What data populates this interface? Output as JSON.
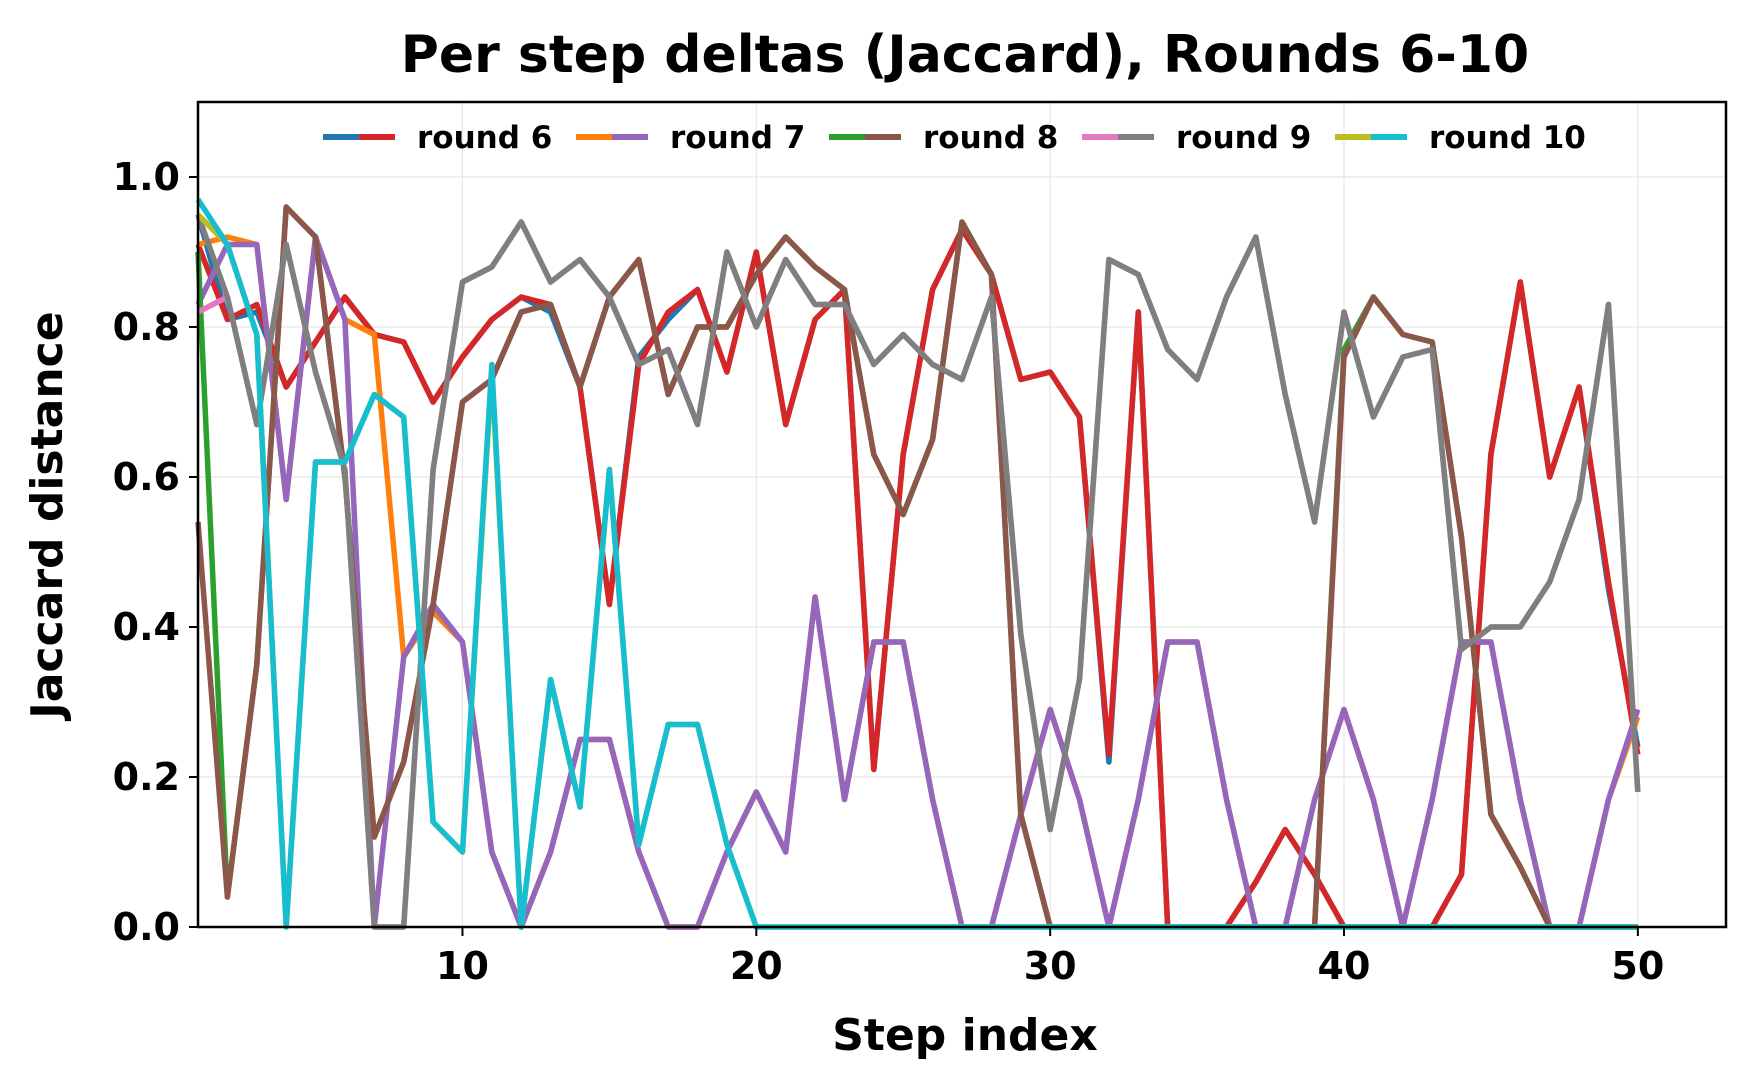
{
  "chart_data": {
    "type": "line",
    "title": "Per step deltas (Jaccard), Rounds 6-10",
    "xlabel": "Step index",
    "ylabel": "Jaccard distance",
    "xlim": [
      1,
      53
    ],
    "ylim": [
      0,
      1.1
    ],
    "xticks": [
      10,
      20,
      30,
      40,
      50
    ],
    "yticks": [
      0.0,
      0.2,
      0.4,
      0.6,
      0.8,
      1.0
    ],
    "grid": true,
    "legend_position": "top-center",
    "legend": [
      {
        "label": "round 6",
        "colors": [
          "#1f77b4",
          "#d62728"
        ]
      },
      {
        "label": "round 7",
        "colors": [
          "#ff7f0e",
          "#9467bd"
        ]
      },
      {
        "label": "round 8",
        "colors": [
          "#2ca02c",
          "#8c564b"
        ]
      },
      {
        "label": "round 9",
        "colors": [
          "#e377c2",
          "#7f7f7f"
        ]
      },
      {
        "label": "round 10",
        "colors": [
          "#bcbd22",
          "#17becf"
        ]
      }
    ],
    "x": [
      1,
      2,
      3,
      4,
      5,
      6,
      7,
      8,
      9,
      10,
      11,
      12,
      13,
      14,
      15,
      16,
      17,
      18,
      19,
      20,
      21,
      22,
      23,
      24,
      25,
      26,
      27,
      28,
      29,
      30,
      31,
      32,
      33,
      34,
      35,
      36,
      37,
      38,
      39,
      40,
      41,
      42,
      43,
      44,
      45,
      46,
      47,
      48,
      49,
      50
    ],
    "series": [
      {
        "color": "#1f77b4",
        "values": [
          0.95,
          0.81,
          0.82,
          0.72,
          0.78,
          0.84,
          0.79,
          0.78,
          0.7,
          0.76,
          0.81,
          0.84,
          0.82,
          0.72,
          0.43,
          0.76,
          0.81,
          0.85,
          0.74,
          0.9,
          0.67,
          0.81,
          0.85,
          0.21,
          0.63,
          0.85,
          0.93,
          0.87,
          0.73,
          0.74,
          0.68,
          0.22,
          0.82,
          0,
          0,
          0,
          0.06,
          0.13,
          0.07,
          0,
          0,
          0,
          0,
          0.07,
          0.63,
          0.86,
          0.6,
          0.72,
          0.45,
          0.24
        ]
      },
      {
        "color": "#d62728",
        "values": [
          0.91,
          0.81,
          0.83,
          0.72,
          0.78,
          0.84,
          0.79,
          0.78,
          0.7,
          0.76,
          0.81,
          0.84,
          0.83,
          0.72,
          0.43,
          0.75,
          0.82,
          0.85,
          0.74,
          0.9,
          0.67,
          0.81,
          0.85,
          0.21,
          0.63,
          0.85,
          0.93,
          0.87,
          0.73,
          0.74,
          0.68,
          0.23,
          0.82,
          0,
          0,
          0,
          0.06,
          0.13,
          0.07,
          0,
          0,
          0,
          0,
          0.07,
          0.63,
          0.86,
          0.6,
          0.72,
          0.46,
          0.23
        ]
      },
      {
        "color": "#ff7f0e",
        "values": [
          0.91,
          0.92,
          0.91,
          0.57,
          0.92,
          0.81,
          0.79,
          0.36,
          0.42,
          0.38,
          0.1,
          0,
          0.1,
          0.25,
          0.25,
          0.1,
          0,
          0,
          0.1,
          0.18,
          0.1,
          0.44,
          0.17,
          0.38,
          0.38,
          0.17,
          0,
          0,
          0.15,
          0.29,
          0.17,
          0,
          0.17,
          0.38,
          0.38,
          0.17,
          0,
          0,
          0.17,
          0.29,
          0.17,
          0,
          0.17,
          0.38,
          0.38,
          0.17,
          0,
          0,
          0.17,
          0.28
        ]
      },
      {
        "color": "#9467bd",
        "values": [
          0.83,
          0.91,
          0.91,
          0.57,
          0.92,
          0.81,
          0,
          0.36,
          0.43,
          0.38,
          0.1,
          0,
          0.1,
          0.25,
          0.25,
          0.1,
          0,
          0,
          0.1,
          0.18,
          0.1,
          0.44,
          0.17,
          0.38,
          0.38,
          0.17,
          0,
          0,
          0.15,
          0.29,
          0.17,
          0,
          0.17,
          0.38,
          0.38,
          0.17,
          0,
          0,
          0.17,
          0.29,
          0.17,
          0,
          0.17,
          0.38,
          0.38,
          0.17,
          0,
          0,
          0.17,
          0.29
        ]
      },
      {
        "color": "#2ca02c",
        "values": [
          0.9,
          0.04,
          0.35,
          0.96,
          0.92,
          0.6,
          0.12,
          0.22,
          0.43,
          0.7,
          0.73,
          0.82,
          0.83,
          0.72,
          0.84,
          0.89,
          0.71,
          0.8,
          0.8,
          0.87,
          0.92,
          0.88,
          0.85,
          0.63,
          0.55,
          0.65,
          0.94,
          0.87,
          0.15,
          0,
          0,
          0,
          0,
          0,
          0,
          0,
          0,
          0,
          0,
          0.77,
          0.84,
          0.79,
          0.78,
          0.52,
          0.15,
          0.08,
          0,
          0,
          0,
          0
        ]
      },
      {
        "color": "#8c564b",
        "values": [
          0.54,
          0.04,
          0.35,
          0.96,
          0.92,
          0.6,
          0.12,
          0.22,
          0.43,
          0.7,
          0.73,
          0.82,
          0.83,
          0.72,
          0.84,
          0.89,
          0.71,
          0.8,
          0.8,
          0.87,
          0.92,
          0.88,
          0.85,
          0.63,
          0.55,
          0.65,
          0.94,
          0.87,
          0.15,
          0,
          0,
          0,
          0,
          0,
          0,
          0,
          0,
          0,
          0,
          0.76,
          0.84,
          0.79,
          0.78,
          0.52,
          0.15,
          0.08,
          0,
          0,
          0,
          0
        ]
      },
      {
        "color": "#e377c2",
        "values": [
          0.82,
          0.84,
          0.67,
          0.91,
          0.74,
          0.61,
          0,
          0,
          0.61,
          0.86,
          0.88,
          0.94,
          0.86,
          0.89,
          0.84,
          0.75,
          0.77,
          0.67,
          0.9,
          0.8,
          0.89,
          0.83,
          0.83,
          0.75,
          0.79,
          0.75,
          0.73,
          0.84,
          0.39,
          0.13,
          0.33,
          0.89,
          0.87,
          0.77,
          0.73,
          0.84,
          0.92,
          0.71,
          0.54,
          0.82,
          0.68,
          0.76,
          0.77,
          0.37,
          0.4,
          0.4,
          0.46,
          0.57,
          0.83,
          0.18
        ]
      },
      {
        "color": "#7f7f7f",
        "values": [
          0.95,
          0.84,
          0.67,
          0.91,
          0.74,
          0.61,
          0,
          0,
          0.61,
          0.86,
          0.88,
          0.94,
          0.86,
          0.89,
          0.84,
          0.75,
          0.77,
          0.67,
          0.9,
          0.8,
          0.89,
          0.83,
          0.83,
          0.75,
          0.79,
          0.75,
          0.73,
          0.84,
          0.39,
          0.13,
          0.33,
          0.89,
          0.87,
          0.77,
          0.73,
          0.84,
          0.92,
          0.71,
          0.54,
          0.82,
          0.68,
          0.76,
          0.77,
          0.37,
          0.4,
          0.4,
          0.46,
          0.57,
          0.83,
          0.18
        ]
      },
      {
        "color": "#bcbd22",
        "values": [
          0.95,
          0.91,
          0.79,
          0,
          0.62,
          0.62,
          0.71,
          0.68,
          0.14,
          0.1,
          0.74,
          0,
          0.33,
          0.16,
          0.61,
          0.11,
          0.27,
          0.27,
          0.11,
          0,
          0,
          0,
          0,
          0,
          0,
          0,
          0,
          0,
          0,
          0,
          0,
          0,
          0,
          0,
          0,
          0,
          0,
          0,
          0,
          0,
          0,
          0,
          0,
          0,
          0,
          0,
          0,
          0,
          0,
          0
        ]
      },
      {
        "color": "#17becf",
        "values": [
          0.97,
          0.91,
          0.79,
          0,
          0.62,
          0.62,
          0.71,
          0.68,
          0.14,
          0.1,
          0.75,
          0,
          0.33,
          0.16,
          0.61,
          0.11,
          0.27,
          0.27,
          0.11,
          0,
          0,
          0,
          0,
          0,
          0,
          0,
          0,
          0,
          0,
          0,
          0,
          0,
          0,
          0,
          0,
          0,
          0,
          0,
          0,
          0,
          0,
          0,
          0,
          0,
          0,
          0,
          0,
          0,
          0,
          0
        ]
      }
    ]
  }
}
